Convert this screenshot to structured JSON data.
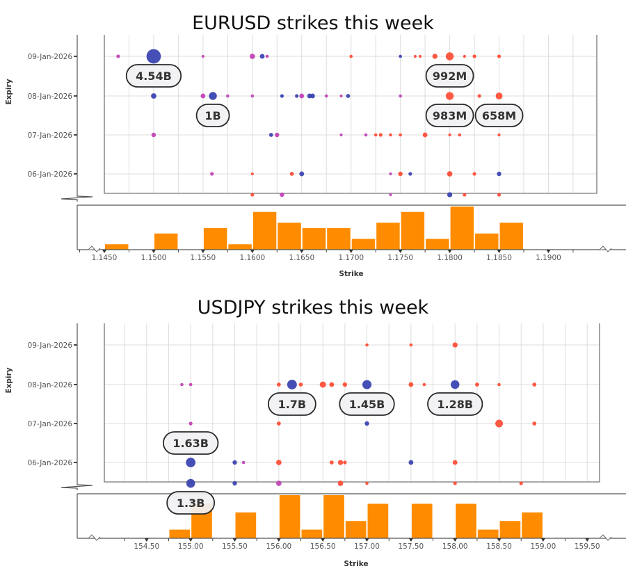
{
  "colors": {
    "red": "#ff4a33",
    "blue": "#3640b0",
    "magenta": "#c13fb4",
    "bar": "#ff8c00",
    "grid": "#dddddd",
    "axis": "#555555"
  },
  "chart_data": [
    {
      "type": "scatter",
      "title": "EURUSD strikes this week",
      "xlabel": "Strike",
      "ylabel": "Expiry",
      "xlim": [
        1.145,
        1.1949
      ],
      "x_ticks": [
        "1.1450",
        "1.1500",
        "1.1550",
        "1.1600",
        "1.1650",
        "1.1700",
        "1.1750",
        "1.1800",
        "1.1850",
        "1.1900"
      ],
      "y_categories": [
        "09-Jan-2026",
        "08-Jan-2026",
        "07-Jan-2026",
        "06-Jan-2026",
        ""
      ],
      "grid": true,
      "points": [
        {
          "s": 1.1464,
          "e": "09-Jan-2026",
          "n": 60,
          "c": "magenta"
        },
        {
          "s": 1.15,
          "e": "09-Jan-2026",
          "n": 4540,
          "c": "blue"
        },
        {
          "s": 1.155,
          "e": "09-Jan-2026",
          "n": 15,
          "c": "magenta"
        },
        {
          "s": 1.16,
          "e": "09-Jan-2026",
          "n": 300,
          "c": "magenta"
        },
        {
          "s": 1.161,
          "e": "09-Jan-2026",
          "n": 200,
          "c": "blue"
        },
        {
          "s": 1.1615,
          "e": "09-Jan-2026",
          "n": 30,
          "c": "magenta"
        },
        {
          "s": 1.17,
          "e": "09-Jan-2026",
          "n": 30,
          "c": "red"
        },
        {
          "s": 1.175,
          "e": "09-Jan-2026",
          "n": 30,
          "c": "blue"
        },
        {
          "s": 1.1765,
          "e": "09-Jan-2026",
          "n": 15,
          "c": "red"
        },
        {
          "s": 1.177,
          "e": "09-Jan-2026",
          "n": 15,
          "c": "red"
        },
        {
          "s": 1.1785,
          "e": "09-Jan-2026",
          "n": 250,
          "c": "red"
        },
        {
          "s": 1.18,
          "e": "09-Jan-2026",
          "n": 992,
          "c": "red"
        },
        {
          "s": 1.1815,
          "e": "09-Jan-2026",
          "n": 15,
          "c": "red"
        },
        {
          "s": 1.1825,
          "e": "09-Jan-2026",
          "n": 60,
          "c": "red"
        },
        {
          "s": 1.185,
          "e": "09-Jan-2026",
          "n": 60,
          "c": "red"
        },
        {
          "s": 1.15,
          "e": "08-Jan-2026",
          "n": 300,
          "c": "blue"
        },
        {
          "s": 1.155,
          "e": "08-Jan-2026",
          "n": 200,
          "c": "magenta"
        },
        {
          "s": 1.156,
          "e": "08-Jan-2026",
          "n": 1000,
          "c": "blue"
        },
        {
          "s": 1.1575,
          "e": "08-Jan-2026",
          "n": 30,
          "c": "magenta"
        },
        {
          "s": 1.16,
          "e": "08-Jan-2026",
          "n": 30,
          "c": "magenta"
        },
        {
          "s": 1.163,
          "e": "08-Jan-2026",
          "n": 60,
          "c": "blue"
        },
        {
          "s": 1.1645,
          "e": "08-Jan-2026",
          "n": 60,
          "c": "blue"
        },
        {
          "s": 1.165,
          "e": "08-Jan-2026",
          "n": 200,
          "c": "magenta"
        },
        {
          "s": 1.1658,
          "e": "08-Jan-2026",
          "n": 200,
          "c": "blue"
        },
        {
          "s": 1.1661,
          "e": "08-Jan-2026",
          "n": 200,
          "c": "blue"
        },
        {
          "s": 1.1675,
          "e": "08-Jan-2026",
          "n": 30,
          "c": "magenta"
        },
        {
          "s": 1.169,
          "e": "08-Jan-2026",
          "n": 15,
          "c": "magenta"
        },
        {
          "s": 1.1697,
          "e": "08-Jan-2026",
          "n": 100,
          "c": "blue"
        },
        {
          "s": 1.175,
          "e": "08-Jan-2026",
          "n": 30,
          "c": "magenta"
        },
        {
          "s": 1.18,
          "e": "08-Jan-2026",
          "n": 983,
          "c": "red"
        },
        {
          "s": 1.183,
          "e": "08-Jan-2026",
          "n": 60,
          "c": "red"
        },
        {
          "s": 1.185,
          "e": "08-Jan-2026",
          "n": 658,
          "c": "red"
        },
        {
          "s": 1.15,
          "e": "07-Jan-2026",
          "n": 150,
          "c": "magenta"
        },
        {
          "s": 1.1619,
          "e": "07-Jan-2026",
          "n": 100,
          "c": "blue"
        },
        {
          "s": 1.1625,
          "e": "07-Jan-2026",
          "n": 150,
          "c": "magenta"
        },
        {
          "s": 1.169,
          "e": "07-Jan-2026",
          "n": 15,
          "c": "magenta"
        },
        {
          "s": 1.1715,
          "e": "07-Jan-2026",
          "n": 30,
          "c": "magenta"
        },
        {
          "s": 1.1725,
          "e": "07-Jan-2026",
          "n": 30,
          "c": "red"
        },
        {
          "s": 1.173,
          "e": "07-Jan-2026",
          "n": 60,
          "c": "red"
        },
        {
          "s": 1.174,
          "e": "07-Jan-2026",
          "n": 30,
          "c": "red"
        },
        {
          "s": 1.175,
          "e": "07-Jan-2026",
          "n": 30,
          "c": "red"
        },
        {
          "s": 1.1775,
          "e": "07-Jan-2026",
          "n": 200,
          "c": "red"
        },
        {
          "s": 1.18,
          "e": "07-Jan-2026",
          "n": 15,
          "c": "red"
        },
        {
          "s": 1.181,
          "e": "07-Jan-2026",
          "n": 30,
          "c": "red"
        },
        {
          "s": 1.185,
          "e": "07-Jan-2026",
          "n": 15,
          "c": "red"
        },
        {
          "s": 1.1559,
          "e": "06-Jan-2026",
          "n": 60,
          "c": "magenta"
        },
        {
          "s": 1.16,
          "e": "06-Jan-2026",
          "n": 15,
          "c": "red"
        },
        {
          "s": 1.164,
          "e": "06-Jan-2026",
          "n": 100,
          "c": "red"
        },
        {
          "s": 1.165,
          "e": "06-Jan-2026",
          "n": 200,
          "c": "blue"
        },
        {
          "s": 1.174,
          "e": "06-Jan-2026",
          "n": 15,
          "c": "magenta"
        },
        {
          "s": 1.175,
          "e": "06-Jan-2026",
          "n": 150,
          "c": "red"
        },
        {
          "s": 1.176,
          "e": "06-Jan-2026",
          "n": 60,
          "c": "blue"
        },
        {
          "s": 1.18,
          "e": "06-Jan-2026",
          "n": 300,
          "c": "red"
        },
        {
          "s": 1.1825,
          "e": "06-Jan-2026",
          "n": 60,
          "c": "red"
        },
        {
          "s": 1.185,
          "e": "06-Jan-2026",
          "n": 150,
          "c": "blue"
        },
        {
          "s": 1.16,
          "e": "",
          "n": 60,
          "c": "red"
        },
        {
          "s": 1.163,
          "e": "",
          "n": 150,
          "c": "magenta"
        },
        {
          "s": 1.174,
          "e": "",
          "n": 15,
          "c": "magenta"
        },
        {
          "s": 1.18,
          "e": "",
          "n": 250,
          "c": "blue"
        },
        {
          "s": 1.1815,
          "e": "",
          "n": 60,
          "c": "red"
        },
        {
          "s": 1.185,
          "e": "",
          "n": 60,
          "c": "red"
        }
      ],
      "labels": [
        {
          "s": 1.15,
          "e": "09-Jan-2026",
          "text": "4.54B",
          "pos": "below"
        },
        {
          "s": 1.156,
          "e": "08-Jan-2026",
          "text": "1B",
          "pos": "below"
        },
        {
          "s": 1.18,
          "e": "09-Jan-2026",
          "text": "992M",
          "pos": "below"
        },
        {
          "s": 1.18,
          "e": "08-Jan-2026",
          "text": "983M",
          "pos": "below"
        },
        {
          "s": 1.185,
          "e": "08-Jan-2026",
          "text": "658M",
          "pos": "below"
        }
      ],
      "histogram": {
        "bin_width": 0.0025,
        "bins": [
          {
            "start": 1.145,
            "count": 1
          },
          {
            "start": 1.15,
            "count": 3
          },
          {
            "start": 1.155,
            "count": 4
          },
          {
            "start": 1.1575,
            "count": 1
          },
          {
            "start": 1.16,
            "count": 7
          },
          {
            "start": 1.1625,
            "count": 5
          },
          {
            "start": 1.165,
            "count": 4
          },
          {
            "start": 1.1675,
            "count": 4
          },
          {
            "start": 1.17,
            "count": 2
          },
          {
            "start": 1.1725,
            "count": 5
          },
          {
            "start": 1.175,
            "count": 7
          },
          {
            "start": 1.1775,
            "count": 2
          },
          {
            "start": 1.18,
            "count": 8
          },
          {
            "start": 1.1825,
            "count": 3
          },
          {
            "start": 1.185,
            "count": 5
          }
        ]
      }
    },
    {
      "type": "scatter",
      "title": "USDJPY strikes this week",
      "xlabel": "Strike",
      "ylabel": "Expiry",
      "xlim": [
        154.02,
        159.64
      ],
      "x_ticks": [
        "154.50",
        "155.00",
        "155.50",
        "156.00",
        "156.50",
        "157.00",
        "157.50",
        "158.00",
        "158.50",
        "159.00",
        "159.50"
      ],
      "y_categories": [
        "09-Jan-2026",
        "08-Jan-2026",
        "07-Jan-2026",
        "06-Jan-2026",
        ""
      ],
      "grid": true,
      "points": [
        {
          "s": 157.0,
          "e": "09-Jan-2026",
          "n": 30,
          "c": "red"
        },
        {
          "s": 157.5,
          "e": "09-Jan-2026",
          "n": 30,
          "c": "red"
        },
        {
          "s": 158.0,
          "e": "09-Jan-2026",
          "n": 250,
          "c": "red"
        },
        {
          "s": 154.9,
          "e": "08-Jan-2026",
          "n": 30,
          "c": "magenta"
        },
        {
          "s": 155.0,
          "e": "08-Jan-2026",
          "n": 30,
          "c": "magenta"
        },
        {
          "s": 156.0,
          "e": "08-Jan-2026",
          "n": 100,
          "c": "red"
        },
        {
          "s": 156.15,
          "e": "08-Jan-2026",
          "n": 1700,
          "c": "blue"
        },
        {
          "s": 156.25,
          "e": "08-Jan-2026",
          "n": 100,
          "c": "red"
        },
        {
          "s": 156.5,
          "e": "08-Jan-2026",
          "n": 500,
          "c": "red"
        },
        {
          "s": 156.6,
          "e": "08-Jan-2026",
          "n": 200,
          "c": "red"
        },
        {
          "s": 156.75,
          "e": "08-Jan-2026",
          "n": 150,
          "c": "red"
        },
        {
          "s": 157.0,
          "e": "08-Jan-2026",
          "n": 1450,
          "c": "blue"
        },
        {
          "s": 157.5,
          "e": "08-Jan-2026",
          "n": 200,
          "c": "red"
        },
        {
          "s": 157.65,
          "e": "08-Jan-2026",
          "n": 30,
          "c": "red"
        },
        {
          "s": 158.0,
          "e": "08-Jan-2026",
          "n": 1280,
          "c": "blue"
        },
        {
          "s": 158.25,
          "e": "08-Jan-2026",
          "n": 100,
          "c": "red"
        },
        {
          "s": 158.5,
          "e": "08-Jan-2026",
          "n": 30,
          "c": "red"
        },
        {
          "s": 158.9,
          "e": "08-Jan-2026",
          "n": 100,
          "c": "red"
        },
        {
          "s": 155.0,
          "e": "07-Jan-2026",
          "n": 60,
          "c": "magenta"
        },
        {
          "s": 156.0,
          "e": "07-Jan-2026",
          "n": 100,
          "c": "red"
        },
        {
          "s": 157.0,
          "e": "07-Jan-2026",
          "n": 150,
          "c": "blue"
        },
        {
          "s": 158.5,
          "e": "07-Jan-2026",
          "n": 900,
          "c": "red"
        },
        {
          "s": 158.9,
          "e": "07-Jan-2026",
          "n": 100,
          "c": "red"
        },
        {
          "s": 155.0,
          "e": "06-Jan-2026",
          "n": 1630,
          "c": "blue"
        },
        {
          "s": 155.5,
          "e": "06-Jan-2026",
          "n": 150,
          "c": "blue"
        },
        {
          "s": 155.6,
          "e": "06-Jan-2026",
          "n": 30,
          "c": "magenta"
        },
        {
          "s": 156.0,
          "e": "06-Jan-2026",
          "n": 300,
          "c": "red"
        },
        {
          "s": 156.6,
          "e": "06-Jan-2026",
          "n": 100,
          "c": "red"
        },
        {
          "s": 156.7,
          "e": "06-Jan-2026",
          "n": 250,
          "c": "red"
        },
        {
          "s": 156.75,
          "e": "06-Jan-2026",
          "n": 60,
          "c": "red"
        },
        {
          "s": 157.5,
          "e": "06-Jan-2026",
          "n": 200,
          "c": "blue"
        },
        {
          "s": 158.0,
          "e": "06-Jan-2026",
          "n": 200,
          "c": "red"
        },
        {
          "s": 155.0,
          "e": "",
          "n": 1300,
          "c": "blue"
        },
        {
          "s": 155.5,
          "e": "",
          "n": 150,
          "c": "blue"
        },
        {
          "s": 156.0,
          "e": "",
          "n": 300,
          "c": "magenta"
        },
        {
          "s": 156.7,
          "e": "",
          "n": 300,
          "c": "red"
        },
        {
          "s": 157.0,
          "e": "",
          "n": 30,
          "c": "red"
        },
        {
          "s": 158.0,
          "e": "",
          "n": 60,
          "c": "red"
        },
        {
          "s": 158.75,
          "e": "",
          "n": 60,
          "c": "red"
        }
      ],
      "labels": [
        {
          "s": 156.15,
          "e": "08-Jan-2026",
          "text": "1.7B",
          "pos": "below"
        },
        {
          "s": 157.0,
          "e": "08-Jan-2026",
          "text": "1.45B",
          "pos": "below"
        },
        {
          "s": 158.0,
          "e": "08-Jan-2026",
          "text": "1.28B",
          "pos": "below"
        },
        {
          "s": 155.0,
          "e": "06-Jan-2026",
          "text": "1.63B",
          "pos": "above"
        },
        {
          "s": 155.0,
          "e": "",
          "text": "1.3B",
          "pos": "below"
        }
      ],
      "histogram": {
        "bin_width": 0.25,
        "bins": [
          {
            "start": 154.75,
            "count": 1
          },
          {
            "start": 155.0,
            "count": 4
          },
          {
            "start": 155.5,
            "count": 3
          },
          {
            "start": 156.0,
            "count": 5
          },
          {
            "start": 156.25,
            "count": 1
          },
          {
            "start": 156.5,
            "count": 5
          },
          {
            "start": 156.75,
            "count": 2
          },
          {
            "start": 157.0,
            "count": 4
          },
          {
            "start": 157.5,
            "count": 4
          },
          {
            "start": 158.0,
            "count": 4
          },
          {
            "start": 158.25,
            "count": 1
          },
          {
            "start": 158.5,
            "count": 2
          },
          {
            "start": 158.75,
            "count": 3
          }
        ]
      }
    }
  ]
}
